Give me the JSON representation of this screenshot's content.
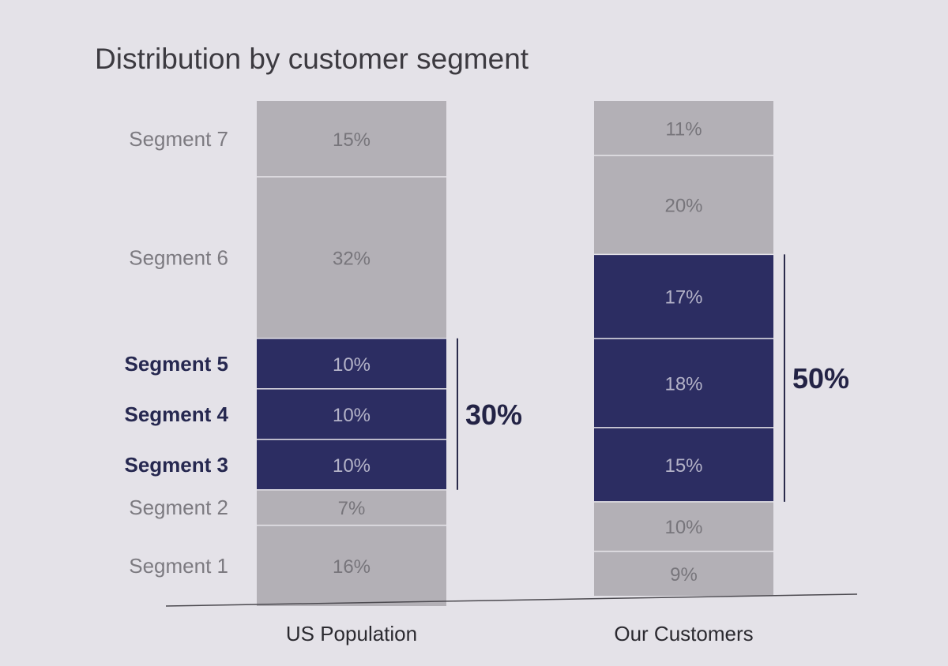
{
  "chart_data": {
    "type": "bar",
    "stacked": true,
    "title": "Distribution by customer segment",
    "categories": [
      "US Population",
      "Our Customers"
    ],
    "series": [
      {
        "name": "Segment 1",
        "values": [
          16,
          9
        ],
        "highlight": false
      },
      {
        "name": "Segment 2",
        "values": [
          7,
          10
        ],
        "highlight": false
      },
      {
        "name": "Segment 3",
        "values": [
          10,
          15
        ],
        "highlight": true
      },
      {
        "name": "Segment 4",
        "values": [
          10,
          18
        ],
        "highlight": true
      },
      {
        "name": "Segment 5",
        "values": [
          10,
          17
        ],
        "highlight": true
      },
      {
        "name": "Segment 6",
        "values": [
          32,
          20
        ],
        "highlight": false
      },
      {
        "name": "Segment 7",
        "values": [
          15,
          11
        ],
        "highlight": false
      }
    ],
    "data_labels": [
      [
        "16%",
        "7%",
        "10%",
        "10%",
        "10%",
        "32%",
        "15%"
      ],
      [
        "9%",
        "10%",
        "15%",
        "18%",
        "17%",
        "20%",
        "11%"
      ]
    ],
    "highlight_totals": [
      "30%",
      "50%"
    ],
    "ylim": [
      0,
      100
    ],
    "xlabel": "",
    "ylabel": "",
    "grid": false,
    "legend": "left",
    "colors": {
      "background": "#e4e2e8",
      "base": "#b3b0b6",
      "highlight": "#2c2d62",
      "divider": "#e7e5ea",
      "axis": "#4c4a50",
      "bracket": "#2a2a4a"
    }
  }
}
